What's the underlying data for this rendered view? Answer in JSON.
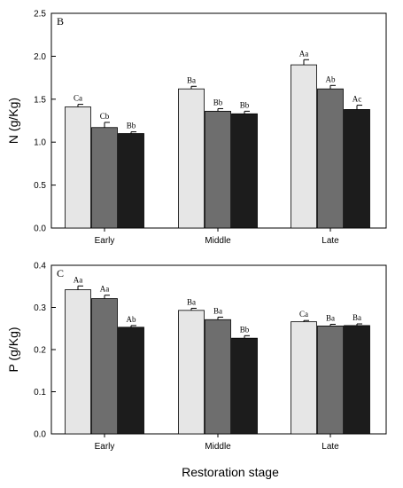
{
  "figure": {
    "xlabel": "Restoration stage"
  },
  "chart_data": [
    {
      "type": "bar",
      "panel_label": "B",
      "ylabel": "N (g/Kg)",
      "categories": [
        "Early",
        "Middle",
        "Late"
      ],
      "ylim": [
        0,
        2.5
      ],
      "yticks": [
        "0.0",
        "0.5",
        "1.0",
        "1.5",
        "2.0",
        "2.5"
      ],
      "series": [
        {
          "color": "#e6e6e6",
          "values": [
            1.41,
            1.62,
            1.9
          ],
          "errors": [
            0.03,
            0.03,
            0.06
          ],
          "labels": [
            "Ca",
            "Ba",
            "Aa"
          ]
        },
        {
          "color": "#6e6e6e",
          "values": [
            1.17,
            1.36,
            1.62
          ],
          "errors": [
            0.06,
            0.03,
            0.04
          ],
          "labels": [
            "Cb",
            "Bb",
            "Ab"
          ]
        },
        {
          "color": "#1c1c1c",
          "values": [
            1.1,
            1.33,
            1.38
          ],
          "errors": [
            0.02,
            0.03,
            0.05
          ],
          "labels": [
            "Bb",
            "Bb",
            "Ac"
          ]
        }
      ]
    },
    {
      "type": "bar",
      "panel_label": "C",
      "ylabel": "P (g/Kg)",
      "categories": [
        "Early",
        "Middle",
        "Late"
      ],
      "ylim": [
        0,
        0.4
      ],
      "yticks": [
        "0.0",
        "0.1",
        "0.2",
        "0.3",
        "0.4"
      ],
      "series": [
        {
          "color": "#e6e6e6",
          "values": [
            0.342,
            0.293,
            0.266
          ],
          "errors": [
            0.009,
            0.005,
            0.003
          ],
          "labels": [
            "Aa",
            "Ba",
            "Ca"
          ]
        },
        {
          "color": "#6e6e6e",
          "values": [
            0.321,
            0.271,
            0.256
          ],
          "errors": [
            0.008,
            0.006,
            0.004
          ],
          "labels": [
            "Aa",
            "Ba",
            "Ba"
          ]
        },
        {
          "color": "#1c1c1c",
          "values": [
            0.253,
            0.227,
            0.257
          ],
          "errors": [
            0.004,
            0.006,
            0.004
          ],
          "labels": [
            "Ab",
            "Bb",
            "Ba"
          ]
        }
      ]
    }
  ]
}
